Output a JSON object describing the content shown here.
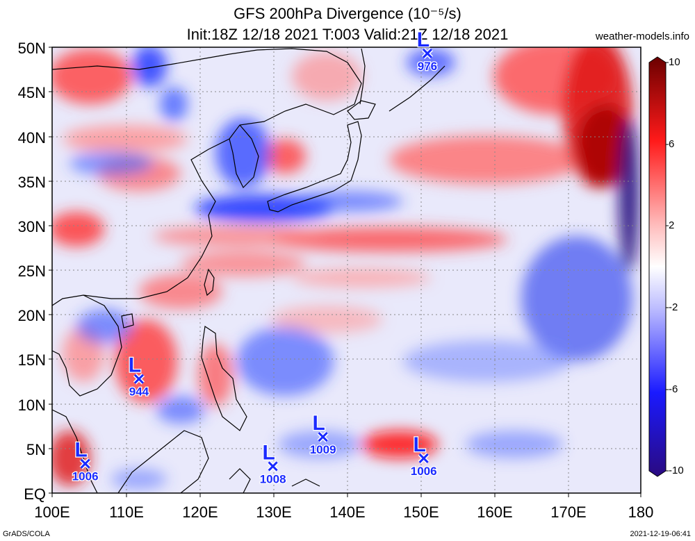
{
  "header": {
    "title_line1": "GFS 200hPa Divergence (10⁻⁵/s)",
    "title_line2": "Init:18Z 12/18 2021 T:003 Valid:21Z 12/18 2021",
    "site": "weather-models.info"
  },
  "footer": {
    "left": "GrADS/COLA",
    "right": "2021-12-19-06:41"
  },
  "axes": {
    "lat_labels": [
      "50N",
      "45N",
      "40N",
      "35N",
      "30N",
      "25N",
      "20N",
      "15N",
      "10N",
      "5N",
      "EQ"
    ],
    "lon_labels": [
      "100E",
      "110E",
      "120E",
      "130E",
      "140E",
      "150E",
      "160E",
      "170E",
      "180"
    ]
  },
  "colorbar": {
    "labels": [
      "10",
      "6",
      "2",
      "-2",
      "-6",
      "-10"
    ],
    "colors": {
      "max": "#6b0000",
      "pos": "#ff1a1a",
      "neutral": "#ffffff",
      "neg": "#1a1aff",
      "min": "#2a0a80"
    }
  },
  "lows": [
    {
      "letter": "L",
      "pressure": "976",
      "lon": 151.0,
      "lat": 49.3
    },
    {
      "letter": "L",
      "pressure": "944",
      "lon": 111.8,
      "lat": 12.8
    },
    {
      "letter": "L",
      "pressure": "1009",
      "lon": 136.8,
      "lat": 6.3
    },
    {
      "letter": "L",
      "pressure": "1006",
      "lon": 104.5,
      "lat": 3.3
    },
    {
      "letter": "L",
      "pressure": "1008",
      "lon": 130.0,
      "lat": 3.0
    },
    {
      "letter": "L",
      "pressure": "1006",
      "lon": 150.5,
      "lat": 3.9
    }
  ]
}
